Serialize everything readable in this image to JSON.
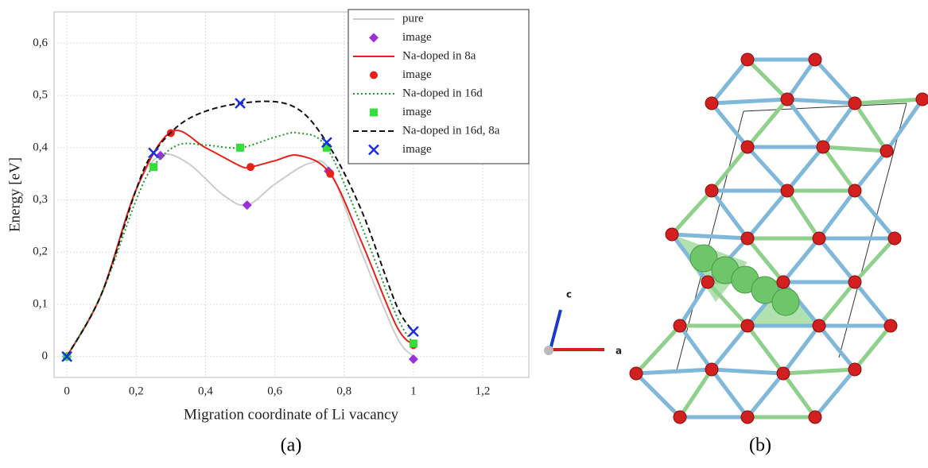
{
  "chart_data": {
    "type": "line",
    "xlabel": "Migration coordinate of Li vacancy",
    "ylabel": "Energy [eV]",
    "xlim": [
      -0.037,
      1.333
    ],
    "ylim": [
      -0.04,
      0.66
    ],
    "xticks": [
      0,
      {
        "value": 0.2,
        "label": "0,2"
      },
      {
        "value": 0.4,
        "label": "0,4"
      },
      {
        "value": 0.6,
        "label": "0,6"
      },
      {
        "value": 0.8,
        "label": "0,8"
      },
      1,
      {
        "value": 1.2,
        "label": "1,2"
      }
    ],
    "yticks": [
      0,
      {
        "value": 0.1,
        "label": "0,1"
      },
      {
        "value": 0.2,
        "label": "0,2"
      },
      {
        "value": 0.3,
        "label": "0,3"
      },
      {
        "value": 0.4,
        "label": "0,4"
      },
      {
        "value": 0.5,
        "label": "0,5"
      },
      {
        "value": 0.6,
        "label": "0,6"
      }
    ],
    "grid": true,
    "legend": "upper right",
    "series": [
      {
        "name": "pure",
        "color": "#cccccc",
        "dash": "solid",
        "x": [
          0,
          0.1,
          0.2,
          0.27,
          0.35,
          0.45,
          0.52,
          0.6,
          0.7,
          0.76,
          0.85,
          0.95,
          1
        ],
        "values": [
          0,
          0.12,
          0.32,
          0.385,
          0.37,
          0.31,
          0.29,
          0.33,
          0.37,
          0.355,
          0.2,
          0.04,
          0
        ]
      },
      {
        "name": "image",
        "color": "#9b30d9",
        "marker": "diamond",
        "x": [
          0,
          0.27,
          0.52,
          0.755,
          1
        ],
        "values": [
          0,
          0.385,
          0.29,
          0.355,
          -0.005
        ]
      },
      {
        "name": "Na-doped in 8a",
        "color": "#e8201a",
        "dash": "solid",
        "x": [
          0,
          0.1,
          0.2,
          0.3,
          0.4,
          0.5,
          0.53,
          0.6,
          0.67,
          0.76,
          0.85,
          0.95,
          1
        ],
        "values": [
          0,
          0.12,
          0.32,
          0.43,
          0.4,
          0.365,
          0.363,
          0.375,
          0.385,
          0.35,
          0.22,
          0.06,
          0.022
        ]
      },
      {
        "name": "image",
        "color": "#e8201a",
        "marker": "circle",
        "x": [
          0,
          0.3,
          0.53,
          0.76,
          1
        ],
        "values": [
          0,
          0.428,
          0.363,
          0.35,
          0.022
        ]
      },
      {
        "name": "Na-doped in 16d",
        "color": "#1e9e2a",
        "dash": "dotted",
        "x": [
          0,
          0.1,
          0.2,
          0.25,
          0.32,
          0.4,
          0.5,
          0.6,
          0.67,
          0.75,
          0.85,
          0.95,
          1
        ],
        "values": [
          0,
          0.12,
          0.3,
          0.365,
          0.405,
          0.405,
          0.4,
          0.42,
          0.428,
          0.4,
          0.25,
          0.08,
          0.025
        ]
      },
      {
        "name": "image",
        "color": "#33e03a",
        "marker": "square",
        "x": [
          0,
          0.25,
          0.5,
          0.75,
          1
        ],
        "values": [
          0,
          0.363,
          0.4,
          0.4,
          0.025
        ]
      },
      {
        "name": "Na-doped in 16d, 8a",
        "color": "#111111",
        "dash": "dashed",
        "x": [
          0,
          0.1,
          0.2,
          0.25,
          0.35,
          0.5,
          0.65,
          0.75,
          0.85,
          0.95,
          1
        ],
        "values": [
          0,
          0.12,
          0.32,
          0.39,
          0.455,
          0.485,
          0.48,
          0.41,
          0.28,
          0.1,
          0.048
        ]
      },
      {
        "name": "image",
        "color": "#1a2ee8",
        "marker": "x",
        "x": [
          0,
          0.25,
          0.5,
          0.75,
          1
        ],
        "values": [
          0,
          0.39,
          0.485,
          0.41,
          0.048
        ]
      }
    ]
  },
  "captions": [
    "(a)",
    "(b)"
  ],
  "structure": {
    "axis_labels": [
      "c",
      "a"
    ]
  }
}
